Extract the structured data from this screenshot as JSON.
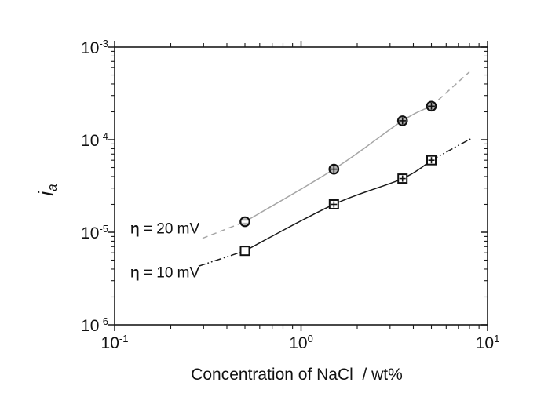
{
  "chart_data": {
    "type": "scatter",
    "title": "",
    "xlabel": "Concentration of NaCl  / wt%",
    "ylabel_base": "i",
    "ylabel_sub": "a",
    "xscale": "log",
    "yscale": "log",
    "xlim": [
      0.1,
      10
    ],
    "ylim": [
      1e-06,
      0.001
    ],
    "grid": false,
    "axis_color": "#1a1a1a",
    "x_ticks": [
      {
        "value": 0.1,
        "base": "10",
        "exp": "-1"
      },
      {
        "value": 1,
        "base": "10",
        "exp": "0"
      },
      {
        "value": 10,
        "base": "10",
        "exp": "1"
      }
    ],
    "y_ticks": [
      {
        "value": 0.001,
        "base": "10",
        "exp": "-3"
      },
      {
        "value": 0.0001,
        "base": "10",
        "exp": "-4"
      },
      {
        "value": 1e-05,
        "base": "10",
        "exp": "-5"
      },
      {
        "value": 1e-06,
        "base": "10",
        "exp": "-6"
      }
    ],
    "series": [
      {
        "name": "eta-20mV",
        "label": "η = 20 mV",
        "line_color": "#a6a6a6",
        "line_width": 1.5,
        "marker": "circle",
        "marker_fill": "#b3b3b3",
        "marker_edge": "#111111",
        "x": [
          0.5,
          1.5,
          3.5,
          5
        ],
        "y": [
          1.3e-05,
          4.8e-05,
          0.00016,
          0.00023
        ],
        "point_markers": [
          "circle-bar",
          "circle-cross",
          "circle-cross",
          "circle-cross"
        ],
        "ext_dash": "7 5",
        "ext_low": {
          "x": [
            0.296,
            0.5
          ],
          "y": [
            8.6e-06,
            1.3e-05
          ]
        },
        "ext_high": {
          "x": [
            5,
            8.0
          ],
          "y": [
            0.00023,
            0.00054
          ]
        }
      },
      {
        "name": "eta-10mV",
        "label": "η = 10 mV",
        "line_color": "#1a1a1a",
        "line_width": 1.5,
        "marker": "square",
        "marker_fill": "#ffffff",
        "marker_edge": "#111111",
        "x": [
          0.5,
          1.5,
          3.5,
          5
        ],
        "y": [
          6.3e-06,
          2e-05,
          3.8e-05,
          6e-05
        ],
        "point_markers": [
          "square-open",
          "square-cross",
          "square-cross",
          "square-cross"
        ],
        "ext_dash": "9 3 1.8 3 1.8 3",
        "ext_low": {
          "x": [
            0.282,
            0.5
          ],
          "y": [
            4.3e-06,
            6.3e-06
          ]
        },
        "ext_high": {
          "x": [
            5,
            8.1
          ],
          "y": [
            6e-05,
            0.000102
          ]
        }
      }
    ],
    "annotations": [
      {
        "symbol": "η",
        "text": " = 20 mV"
      },
      {
        "symbol": "η",
        "text": " = 10 mV"
      }
    ]
  }
}
